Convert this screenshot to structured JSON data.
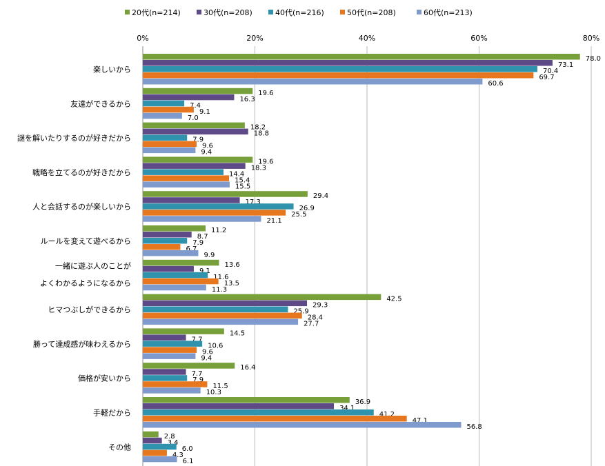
{
  "chart_data": {
    "type": "bar",
    "orientation": "horizontal",
    "title": "",
    "xlabel": "",
    "ylabel": "",
    "xlim": [
      0,
      80
    ],
    "x_ticks": [
      "0%",
      "20%",
      "40%",
      "60%",
      "80%"
    ],
    "x_tick_values": [
      0,
      20,
      40,
      60,
      80
    ],
    "grid": true,
    "legend_position": "top",
    "categories": [
      [
        "楽しいから"
      ],
      [
        "友達ができるから"
      ],
      [
        "謎を解いたりするのが好きだから"
      ],
      [
        "戦略を立てるのが好きだから"
      ],
      [
        "人と会話するのが楽しいから"
      ],
      [
        "ルールを変えて遊べるから"
      ],
      [
        "一緒に遊ぶ人のことが",
        "よくわかるようになるから"
      ],
      [
        "ヒマつぶしができるから"
      ],
      [
        "勝って達成感が味わえるから"
      ],
      [
        "価格が安いから"
      ],
      [
        "手軽だから"
      ],
      [
        "その他"
      ]
    ],
    "series": [
      {
        "name": "20代(n=214)",
        "color": "#77a03a",
        "values": [
          78.0,
          19.6,
          18.2,
          19.6,
          29.4,
          11.2,
          13.6,
          42.5,
          14.5,
          16.4,
          36.9,
          2.8
        ]
      },
      {
        "name": "30代(n=208)",
        "color": "#5e4a86",
        "values": [
          73.1,
          16.3,
          18.8,
          18.3,
          17.3,
          8.7,
          9.1,
          29.3,
          7.7,
          7.7,
          34.1,
          3.4
        ]
      },
      {
        "name": "40代(n=216)",
        "color": "#2f93ad",
        "values": [
          70.4,
          7.4,
          7.9,
          14.4,
          26.9,
          7.9,
          11.6,
          25.9,
          10.6,
          7.9,
          41.2,
          6.0
        ]
      },
      {
        "name": "50代(n=208)",
        "color": "#e6771f",
        "values": [
          69.7,
          9.1,
          9.6,
          15.4,
          25.5,
          6.7,
          13.5,
          28.4,
          9.6,
          11.5,
          47.1,
          4.3
        ]
      },
      {
        "name": "60代(n=213)",
        "color": "#7f9bcd",
        "values": [
          60.6,
          7.0,
          9.4,
          15.5,
          21.1,
          9.9,
          11.3,
          27.7,
          9.4,
          10.3,
          56.8,
          6.1
        ]
      }
    ]
  }
}
